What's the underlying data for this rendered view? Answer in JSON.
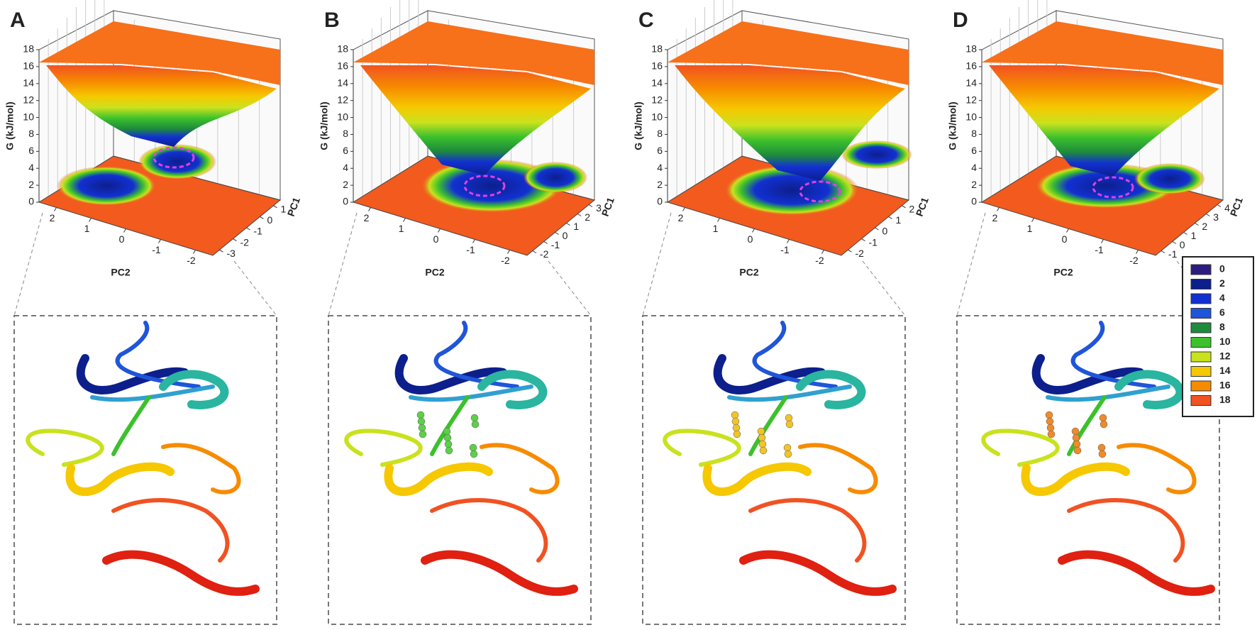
{
  "panels": [
    {
      "label": "A",
      "z_axis": {
        "label": "G (kJ/mol)",
        "ticks": [
          0,
          2,
          4,
          6,
          8,
          10,
          12,
          14,
          16,
          18
        ]
      },
      "pc1": {
        "label": "PC1",
        "ticks": [
          1,
          0,
          -1,
          -2,
          -3
        ]
      },
      "pc2": {
        "label": "PC2",
        "ticks": [
          2,
          1,
          0,
          -1,
          -2
        ]
      }
    },
    {
      "label": "B",
      "z_axis": {
        "label": "G (kJ/mol)",
        "ticks": [
          0,
          2,
          4,
          6,
          8,
          10,
          12,
          14,
          16,
          18
        ]
      },
      "pc1": {
        "label": "PC1",
        "ticks": [
          3,
          2,
          1,
          0,
          -1,
          -2
        ]
      },
      "pc2": {
        "label": "PC2",
        "ticks": [
          2,
          1,
          0,
          -1,
          -2
        ]
      }
    },
    {
      "label": "C",
      "z_axis": {
        "label": "G (kJ/mol)",
        "ticks": [
          0,
          2,
          4,
          6,
          8,
          10,
          12,
          14,
          16,
          18
        ]
      },
      "pc1": {
        "label": "PC1",
        "ticks": [
          2,
          1,
          0,
          -1,
          -2
        ]
      },
      "pc2": {
        "label": "PC2",
        "ticks": [
          2,
          1,
          0,
          -1,
          -2
        ]
      }
    },
    {
      "label": "D",
      "z_axis": {
        "label": "G (kJ/mol)",
        "ticks": [
          0,
          2,
          4,
          6,
          8,
          10,
          12,
          14,
          16,
          18
        ]
      },
      "pc1": {
        "label": "PC1",
        "ticks": [
          4,
          3,
          2,
          1,
          0,
          -1
        ]
      },
      "pc2": {
        "label": "PC2",
        "ticks": [
          2,
          1,
          0,
          -1,
          -2
        ]
      }
    }
  ],
  "legend": {
    "items": [
      {
        "value": 0,
        "color": "#2b1d80"
      },
      {
        "value": 2,
        "color": "#0c1f8c"
      },
      {
        "value": 4,
        "color": "#1230d2"
      },
      {
        "value": 6,
        "color": "#1f55d8"
      },
      {
        "value": 8,
        "color": "#1e8a3c"
      },
      {
        "value": 10,
        "color": "#3cc12c"
      },
      {
        "value": 12,
        "color": "#c9e21e"
      },
      {
        "value": 14,
        "color": "#f6c800"
      },
      {
        "value": 16,
        "color": "#f78b00"
      },
      {
        "value": 18,
        "color": "#f15222"
      }
    ]
  }
}
